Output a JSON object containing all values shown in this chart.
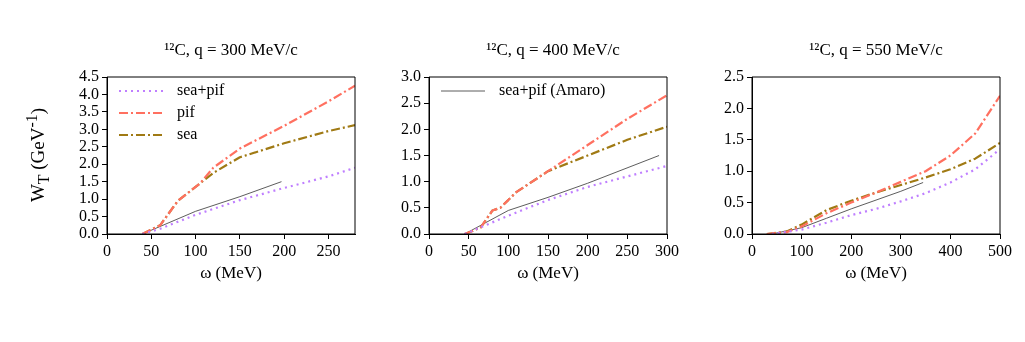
{
  "chart_data": [
    {
      "type": "line",
      "title": "¹²C, q = 300 MeV/c",
      "xlabel": "ω (MeV)",
      "ylabel": "W$_{T}$ (GeV$^{-1}$)",
      "xlim": [
        0,
        280
      ],
      "xticks": [
        0,
        50,
        100,
        150,
        200,
        250
      ],
      "ylim": [
        0,
        4.5
      ],
      "yticks": [
        {
          "value": 0,
          "label": "0.0"
        },
        0.5,
        {
          "value": 1,
          "label": "1.0"
        },
        1.5,
        {
          "value": 2,
          "label": "2.0"
        },
        2.5,
        {
          "value": 3,
          "label": "3.0"
        },
        3.5,
        {
          "value": 4,
          "label": "4.0"
        },
        4.5
      ],
      "grid": false,
      "legend": "top left",
      "marker": "none",
      "series": [
        {
          "name": "sea+pif",
          "color": "#bf7fff",
          "line_style": "dotted",
          "x": [
            40,
            60,
            100,
            150,
            200,
            250,
            280
          ],
          "values": [
            0,
            0.15,
            0.55,
            0.97,
            1.32,
            1.65,
            1.9
          ]
        },
        {
          "name": "pif",
          "color": "#ff7060",
          "line_style": "dashed",
          "x": [
            40,
            60,
            80,
            105,
            120,
            150,
            200,
            250,
            280
          ],
          "values": [
            0,
            0.25,
            0.95,
            1.45,
            1.9,
            2.45,
            3.1,
            3.8,
            4.25
          ]
        },
        {
          "name": "sea",
          "color": "#a07a14",
          "line_style": "dashed",
          "x": [
            40,
            60,
            80,
            105,
            120,
            150,
            200,
            250,
            280
          ],
          "values": [
            0,
            0.25,
            0.95,
            1.45,
            1.75,
            2.2,
            2.6,
            2.95,
            3.12
          ]
        },
        {
          "color": "#333333",
          "line_style": "solid",
          "x": [
            40,
            100,
            150,
            197
          ],
          "values": [
            0,
            0.65,
            1.07,
            1.5
          ]
        }
      ]
    },
    {
      "type": "line",
      "title": "¹²C, q = 400 MeV/c",
      "xlabel": "ω (MeV)",
      "xlim": [
        0,
        300
      ],
      "xticks": [
        0,
        50,
        100,
        150,
        200,
        250,
        300
      ],
      "ylim": [
        0,
        3
      ],
      "yticks": [
        {
          "value": 0,
          "label": "0.0"
        },
        0.5,
        {
          "value": 1,
          "label": "1.0"
        },
        1.5,
        {
          "value": 2,
          "label": "2.0"
        },
        2.5,
        {
          "value": 3,
          "label": "3.0"
        }
      ],
      "grid": false,
      "legend": "top left",
      "marker": "none",
      "series": [
        {
          "color": "#bf7fff",
          "line_style": "dotted",
          "x": [
            45,
            100,
            150,
            200,
            250,
            300
          ],
          "values": [
            0,
            0.35,
            0.65,
            0.9,
            1.1,
            1.3
          ]
        },
        {
          "color": "#ff7060",
          "line_style": "dashed",
          "x": [
            45,
            65,
            80,
            90,
            110,
            150,
            200,
            250,
            300
          ],
          "values": [
            0,
            0.12,
            0.45,
            0.5,
            0.8,
            1.2,
            1.7,
            2.2,
            2.65
          ]
        },
        {
          "color": "#a07a14",
          "line_style": "dashed",
          "x": [
            45,
            65,
            80,
            90,
            110,
            150,
            200,
            250,
            300
          ],
          "values": [
            0,
            0.12,
            0.45,
            0.5,
            0.8,
            1.2,
            1.5,
            1.8,
            2.05
          ]
        },
        {
          "name": "sea+pif (Amaro)",
          "color": "#333333",
          "line_style": "solid",
          "x": [
            45,
            100,
            150,
            200,
            290
          ],
          "values": [
            0,
            0.45,
            0.7,
            0.97,
            1.5
          ]
        }
      ]
    },
    {
      "type": "line",
      "title": "¹²C, q = 550 MeV/c",
      "xlabel": "ω (MeV)",
      "xlim": [
        0,
        500
      ],
      "xticks": [
        0,
        100,
        200,
        300,
        400,
        500
      ],
      "ylim": [
        0,
        2.5
      ],
      "yticks": [
        {
          "value": 0,
          "label": "0.0"
        },
        0.5,
        {
          "value": 1,
          "label": "1.0"
        },
        1.5,
        {
          "value": 2,
          "label": "2.0"
        },
        2.5
      ],
      "grid": false,
      "marker": "none",
      "series": [
        {
          "color": "#bf7fff",
          "line_style": "dotted",
          "x": [
            40,
            100,
            150,
            200,
            250,
            300,
            350,
            400,
            450,
            500
          ],
          "values": [
            0,
            0.07,
            0.18,
            0.3,
            0.4,
            0.52,
            0.65,
            0.82,
            1.03,
            1.35
          ]
        },
        {
          "color": "#ff7060",
          "line_style": "dashed",
          "x": [
            30,
            70,
            100,
            150,
            200,
            250,
            300,
            350,
            400,
            450,
            500
          ],
          "values": [
            0,
            0.03,
            0.12,
            0.33,
            0.5,
            0.66,
            0.83,
            1,
            1.25,
            1.6,
            2.2
          ]
        },
        {
          "color": "#a07a14",
          "line_style": "dashed",
          "x": [
            30,
            70,
            100,
            150,
            200,
            250,
            300,
            350,
            400,
            450,
            500
          ],
          "values": [
            0,
            0.04,
            0.15,
            0.38,
            0.53,
            0.66,
            0.78,
            0.9,
            1.03,
            1.2,
            1.45
          ]
        },
        {
          "color": "#333333",
          "line_style": "solid",
          "x": [
            40,
            100,
            150,
            200,
            250,
            300,
            345
          ],
          "values": [
            0,
            0.1,
            0.25,
            0.4,
            0.54,
            0.68,
            0.82
          ]
        }
      ]
    }
  ]
}
